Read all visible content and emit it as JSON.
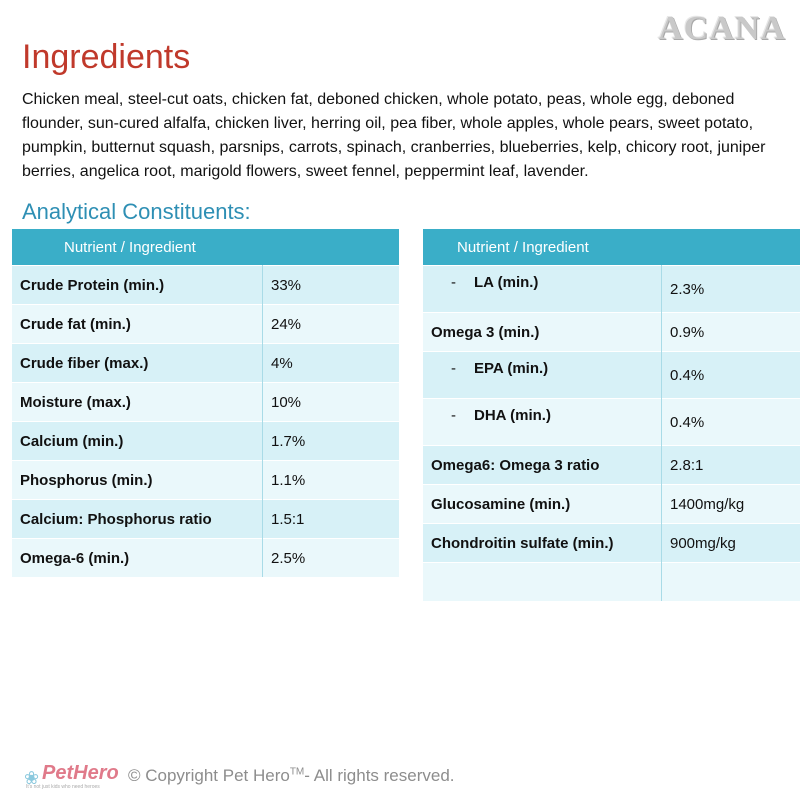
{
  "brand": "ACANA",
  "ingredients": {
    "title": "Ingredients",
    "text": "Chicken meal, steel-cut oats, chicken fat, deboned chicken, whole potato, peas, whole egg, deboned flounder, sun-cured alfalfa, chicken liver, herring oil, pea fiber, whole apples, whole pears, sweet potato, pumpkin, butternut squash, parsnips, carrots, spinach, cranberries, blueberries, kelp, chicory root, juniper berries, angelica root, marigold flowers, sweet fennel, peppermint leaf, lavender."
  },
  "analytical": {
    "title": "Analytical Constituents:",
    "left_table": {
      "header": "Nutrient / Ingredient",
      "rows": [
        {
          "nutrient": "Crude Protein (min.)",
          "value": "33%"
        },
        {
          "nutrient": "Crude fat (min.)",
          "value": "24%"
        },
        {
          "nutrient": "Crude fiber (max.)",
          "value": "4%"
        },
        {
          "nutrient": "Moisture (max.)",
          "value": "10%"
        },
        {
          "nutrient": "Calcium (min.)",
          "value": "1.7%"
        },
        {
          "nutrient": "Phosphorus (min.)",
          "value": "1.1%"
        },
        {
          "nutrient": "Calcium: Phosphorus ratio",
          "value": "1.5:1"
        },
        {
          "nutrient": "Omega-6 (min.)",
          "value": "2.5%"
        }
      ]
    },
    "right_table": {
      "header": "Nutrient / Ingredient",
      "rows": [
        {
          "nutrient": "LA (min.)",
          "value": "2.3%",
          "sub": true
        },
        {
          "nutrient": "Omega 3 (min.)",
          "value": "0.9%"
        },
        {
          "nutrient": "EPA (min.)",
          "value": "0.4%",
          "sub": true
        },
        {
          "nutrient": "DHA (min.)",
          "value": "0.4%",
          "sub": true
        },
        {
          "nutrient": "Omega6: Omega 3 ratio",
          "value": "2.8:1"
        },
        {
          "nutrient": "Glucosamine (min.)",
          "value": "1400mg/kg"
        },
        {
          "nutrient": "Chondroitin sulfate (min.)",
          "value": "900mg/kg"
        },
        {
          "nutrient": "",
          "value": ""
        }
      ]
    }
  },
  "footer": {
    "logo_text": "PetHero",
    "logo_tagline": "It's not just kids who need heroes",
    "copyright_prefix": "© Copyright Pet Hero",
    "copyright_tm": "TM",
    "copyright_suffix": "- All rights reserved."
  }
}
